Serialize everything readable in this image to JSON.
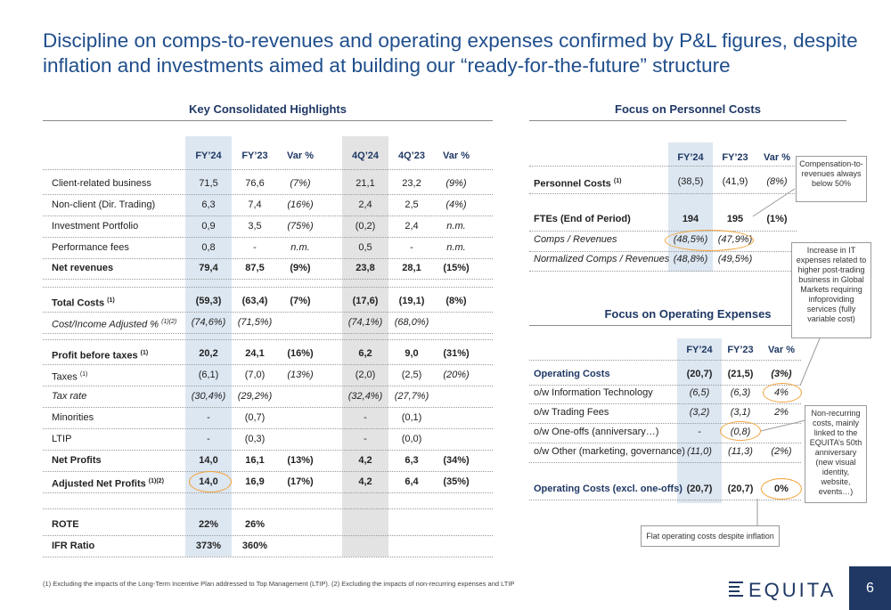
{
  "title": "Discipline on comps-to-revenues and operating expenses confirmed by P&L figures, despite inflation and investments aimed at building our “ready-for-the-future” structure",
  "left": {
    "section_title": "Key Consolidated Highlights",
    "headers": [
      "FY’24",
      "FY’23",
      "Var %",
      "4Q’24",
      "4Q’23",
      "Var %"
    ],
    "rows": [
      {
        "label": "Client-related business",
        "vals": [
          "71,5",
          "76,6",
          "(7%)",
          "21,1",
          "23,2",
          "(9%)"
        ]
      },
      {
        "label": "Non-client (Dir. Trading)",
        "vals": [
          "6,3",
          "7,4",
          "(16%)",
          "2,4",
          "2,5",
          "(4%)"
        ]
      },
      {
        "label": "Investment Portfolio",
        "vals": [
          "0,9",
          "3,5",
          "(75%)",
          "(0,2)",
          "2,4",
          "n.m."
        ]
      },
      {
        "label": "Performance fees",
        "vals": [
          "0,8",
          "-",
          "n.m.",
          "0,5",
          "-",
          "n.m."
        ]
      },
      {
        "label": "Net revenues",
        "vals": [
          "79,4",
          "87,5",
          "(9%)",
          "23,8",
          "28,1",
          "(15%)"
        ]
      },
      {
        "label": "Total Costs",
        "sup": "(1)",
        "vals": [
          "(59,3)",
          "(63,4)",
          "(7%)",
          "(17,6)",
          "(19,1)",
          "(8%)"
        ]
      },
      {
        "label": "Cost/Income Adjusted %",
        "sup": "(1)(2)",
        "vals": [
          "(74,6%)",
          "(71,5%)",
          "",
          "(74,1%)",
          "(68,0%)",
          ""
        ]
      },
      {
        "label": "Profit before taxes",
        "sup": "(1)",
        "vals": [
          "20,2",
          "24,1",
          "(16%)",
          "6,2",
          "9,0",
          "(31%)"
        ]
      },
      {
        "label": "Taxes",
        "sup": "(1)",
        "vals": [
          "(6,1)",
          "(7,0)",
          "(13%)",
          "(2,0)",
          "(2,5)",
          "(20%)"
        ]
      },
      {
        "label": "Tax rate",
        "vals": [
          "(30,4%)",
          "(29,2%)",
          "",
          "(32,4%)",
          "(27,7%)",
          ""
        ]
      },
      {
        "label": "Minorities",
        "vals": [
          "-",
          "(0,7)",
          "",
          "-",
          "(0,1)",
          ""
        ]
      },
      {
        "label": "LTIP",
        "vals": [
          "-",
          "(0,3)",
          "",
          "-",
          "(0,0)",
          ""
        ]
      },
      {
        "label": "Net Profits",
        "vals": [
          "14,0",
          "16,1",
          "(13%)",
          "4,2",
          "6,3",
          "(34%)"
        ]
      },
      {
        "label": "Adjusted Net Profits",
        "sup": "(1)(2)",
        "vals": [
          "14,0",
          "16,9",
          "(17%)",
          "4,2",
          "6,4",
          "(35%)"
        ]
      },
      {
        "label": "ROTE",
        "vals": [
          "22%",
          "26%",
          "",
          "",
          "",
          ""
        ]
      },
      {
        "label": "IFR Ratio",
        "vals": [
          "373%",
          "360%",
          "",
          "",
          "",
          ""
        ]
      }
    ]
  },
  "personnel": {
    "section_title": "Focus on Personnel Costs",
    "headers": [
      "FY’24",
      "FY’23",
      "Var %"
    ],
    "rows": [
      {
        "label": "Personnel Costs",
        "sup": "(1)",
        "vals": [
          "(38,5)",
          "(41,9)",
          "(8%)"
        ]
      },
      {
        "label": "FTEs (End of Period)",
        "vals": [
          "194",
          "195",
          "(1%)"
        ]
      },
      {
        "label": "Comps / Revenues",
        "vals": [
          "(48,5%)",
          "(47,9%)",
          ""
        ]
      },
      {
        "label": "Normalized Comps / Revenues",
        "vals": [
          "(48,8%)",
          "(49,5%)",
          ""
        ]
      }
    ]
  },
  "opex": {
    "section_title": "Focus on Operating Expenses",
    "headers": [
      "FY’24",
      "FY’23",
      "Var %"
    ],
    "rows": [
      {
        "label": "Operating Costs",
        "vals": [
          "(20,7)",
          "(21,5)",
          "(3%)"
        ]
      },
      {
        "label": "o/w Information Technology",
        "vals": [
          "(6,5)",
          "(6,3)",
          "4%"
        ]
      },
      {
        "label": "o/w Trading Fees",
        "vals": [
          "(3,2)",
          "(3,1)",
          "2%"
        ]
      },
      {
        "label": "o/w One-offs (anniversary…)",
        "vals": [
          "-",
          "(0,8)",
          ""
        ]
      },
      {
        "label": "o/w Other (marketing, governance)",
        "vals": [
          "(11,0)",
          "(11,3)",
          "(2%)"
        ]
      },
      {
        "label": "Operating Costs (excl. one-offs)",
        "vals": [
          "(20,7)",
          "(20,7)",
          "0%"
        ]
      }
    ]
  },
  "callouts": {
    "comps": "Compensation-to-revenues always below 50%",
    "it": "Increase in IT expenses related to higher post-trading business in Global Markets requiring infoproviding services (fully variable cost)",
    "oneoffs": "Non-recurring costs, mainly linked to the EQUITA’s 50th anniversary (new visual identity, website, events…)",
    "flat": "Flat operating costs despite inflation"
  },
  "footnote": "(1) Excluding the impacts of the Long-Term Incentive Plan addressed to Top Management (LTIP). (2) Excluding the impacts of non-recurring expenses and LTIP",
  "logo": "EQUITA",
  "page_number": "6",
  "colors": {
    "title": "#1f4e8c",
    "header": "#1f3864",
    "highlight": "#f2a33a",
    "shade_fy": "#dde7f1",
    "shade_q": "#e3e3e3"
  }
}
